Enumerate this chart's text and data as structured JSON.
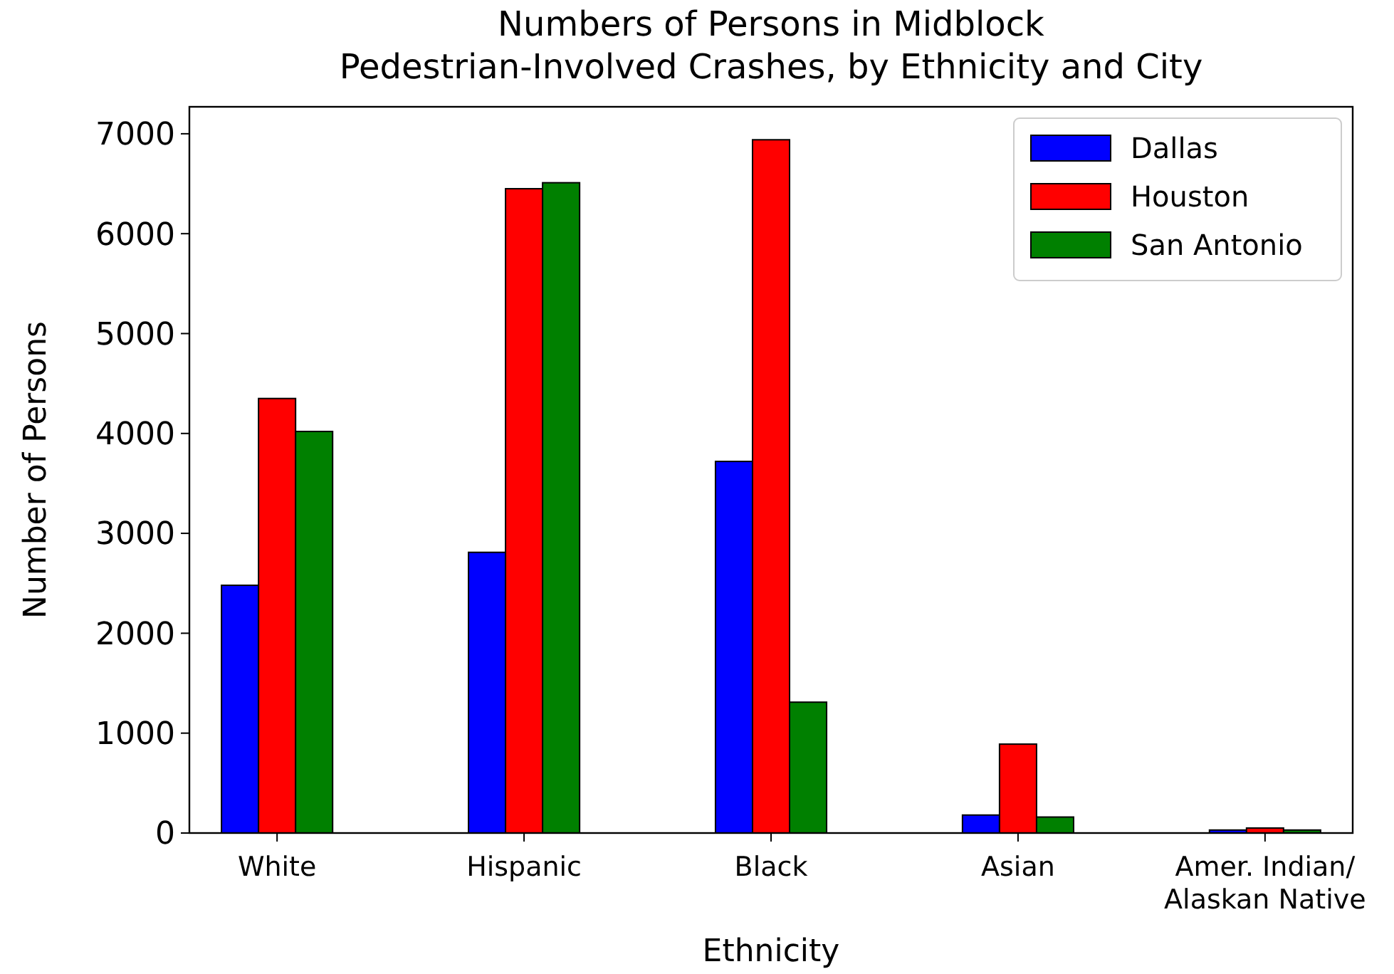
{
  "chart_data": {
    "type": "bar",
    "title": "Numbers of Persons in Midblock\nPedestrian-Involved Crashes, by Ethnicity and City",
    "xlabel": "Ethnicity",
    "ylabel": "Number of Persons",
    "categories": [
      "White",
      "Hispanic",
      "Black",
      "Asian",
      "Amer. Indian/\nAlaskan Native"
    ],
    "series": [
      {
        "name": "Dallas",
        "color": "#0000ff",
        "values": [
          2480,
          2810,
          3720,
          180,
          30
        ]
      },
      {
        "name": "Houston",
        "color": "#ff0000",
        "values": [
          4350,
          6450,
          6940,
          890,
          50
        ]
      },
      {
        "name": "San Antonio",
        "color": "#008000",
        "values": [
          4020,
          6510,
          1310,
          160,
          30
        ]
      }
    ],
    "ylim": [
      0,
      7270
    ],
    "yticks": [
      0,
      1000,
      2000,
      3000,
      4000,
      5000,
      6000,
      7000
    ],
    "grid": false,
    "legend": "top right"
  }
}
